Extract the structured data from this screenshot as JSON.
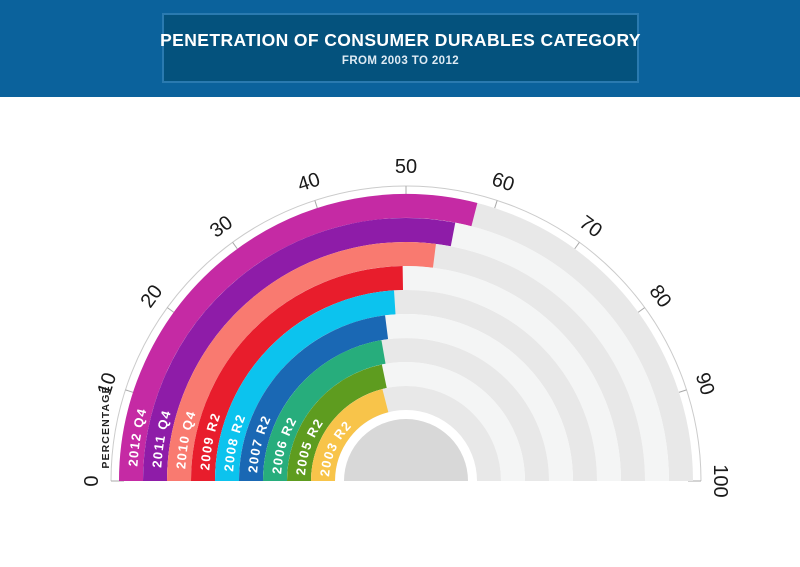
{
  "header": {
    "title": "PENETRATION OF CONSUMER DURABLES CATEGORY",
    "subtitle": "FROM 2003 TO 2012"
  },
  "chart_data": {
    "type": "gauge",
    "subtype": "semi-circular concentric radial bars, newest series outermost",
    "title": "PENETRATION OF CONSUMER DURABLES CATEGORY",
    "subtitle": "FROM 2003 TO 2012",
    "unit": "percent",
    "axis": {
      "label": "PERCENTAGE",
      "min": 0,
      "max": 100,
      "tick_interval": 10,
      "ticks": [
        0,
        10,
        20,
        30,
        40,
        50,
        60,
        70,
        80,
        90,
        100
      ]
    },
    "series": [
      {
        "name": "2012 Q4",
        "value": 58,
        "color": "#C52AA4"
      },
      {
        "name": "2011 Q4",
        "value": 56,
        "color": "#8E1CA8"
      },
      {
        "name": "2010 Q4",
        "value": 54,
        "color": "#F97A70"
      },
      {
        "name": "2009 R2",
        "value": 49.5,
        "color": "#E81D2C"
      },
      {
        "name": "2008 R2",
        "value": 48,
        "color": "#0CC3EE"
      },
      {
        "name": "2007 R2",
        "value": 46,
        "color": "#1A68B4"
      },
      {
        "name": "2006 R2",
        "value": 44.5,
        "color": "#27AD7C"
      },
      {
        "name": "2005 R2",
        "value": 43.5,
        "color": "#5E9C1F"
      },
      {
        "name": "2003 R2",
        "value": 42,
        "color": "#F8C44A"
      }
    ],
    "style": {
      "track_colors_alternating": [
        "#E8E8E8",
        "#F4F5F5"
      ],
      "hub_color": "#D8D8D8",
      "axis_line_color": "#CBCBCB",
      "tick_color": "#A9A9A9",
      "tick_label_color": "#1A1A1A",
      "ring_label_color": "#FFFFFF",
      "header_bg": "#0B629C",
      "header_box_bg": "#04527D",
      "header_box_border": "#2A7AB0"
    },
    "layout_hints": {
      "orientation": "upward semicircle, 0 at left, 100 at right",
      "grid": "off",
      "legend": "labels written along each ring start"
    }
  }
}
